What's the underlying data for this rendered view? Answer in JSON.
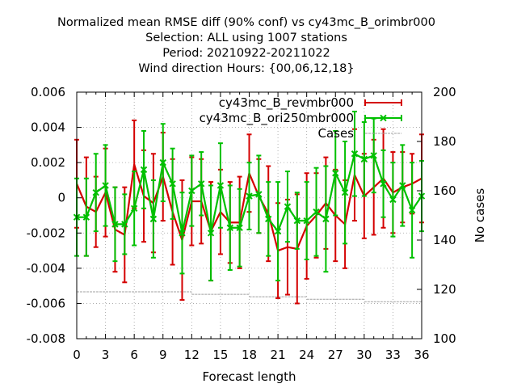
{
  "chart_data": {
    "type": "line",
    "title_lines": [
      "Normalized mean RMSE diff (90% conf) vs cy43mc_B_orimbr000",
      "Selection: ALL using  1007 stations",
      "Period: 20210922-20211022",
      "Wind direction   Hours: {00,06,12,18}"
    ],
    "xlabel": "Forecast length",
    "ylabel": "",
    "y2label": "No cases",
    "xlim": [
      0,
      36
    ],
    "ylim": [
      -0.008,
      0.006
    ],
    "y2lim": [
      100,
      200
    ],
    "xticks": [
      "0",
      "3",
      "6",
      "9",
      "12",
      "15",
      "18",
      "21",
      "24",
      "27",
      "30",
      "33",
      "36"
    ],
    "yticks": [
      "-0.008",
      "-0.006",
      "-0.004",
      "-0.002",
      "0",
      "0.002",
      "0.004",
      "0.006"
    ],
    "y2ticks": [
      "100",
      "120",
      "140",
      "160",
      "180",
      "200"
    ],
    "grid": true,
    "legend_position": "top-right",
    "x": [
      0,
      1,
      2,
      3,
      4,
      5,
      6,
      7,
      8,
      9,
      10,
      11,
      12,
      13,
      14,
      15,
      16,
      17,
      18,
      19,
      20,
      21,
      22,
      23,
      24,
      25,
      26,
      27,
      28,
      29,
      30,
      31,
      32,
      33,
      34,
      35,
      36
    ],
    "series": [
      {
        "name": "cy43mc_B_revmbr000",
        "color": "#d40000",
        "values": [
          0.0008,
          -0.0005,
          -0.0008,
          0.0003,
          -0.0018,
          -0.0021,
          0.0019,
          0.0001,
          -0.0003,
          0.0012,
          -0.0008,
          -0.0024,
          -0.0002,
          -0.0002,
          -0.0019,
          -0.0008,
          -0.0014,
          -0.0014,
          0.0014,
          0.0001,
          -0.0009,
          -0.003,
          -0.0028,
          -0.0029,
          -0.0016,
          -0.001,
          -0.0003,
          -0.001,
          -0.0015,
          0.0013,
          0.0001,
          0.0006,
          0.0011,
          0.0003,
          0.0006,
          0.0008,
          0.0011
        ],
        "errors": [
          0.0025,
          0.0028,
          0.002,
          0.0025,
          0.0024,
          0.0027,
          0.0025,
          0.0026,
          0.0028,
          0.0025,
          0.003,
          0.0034,
          0.0025,
          0.0024,
          0.0028,
          0.0024,
          0.0023,
          0.0026,
          0.0022,
          0.0021,
          0.0027,
          0.0027,
          0.0027,
          0.0031,
          0.003,
          0.0024,
          0.0026,
          0.0026,
          0.0025,
          0.0026,
          0.0024,
          0.0027,
          0.0028,
          0.0023,
          0.002,
          0.0017,
          0.0025
        ]
      },
      {
        "name": "cy43mc_B_ori250mbr000",
        "color": "#00c000",
        "values": [
          -0.0011,
          -0.0011,
          0.0003,
          0.0007,
          -0.0015,
          -0.0015,
          -0.0006,
          0.0016,
          -0.0012,
          0.002,
          0.0008,
          -0.002,
          0.0004,
          0.0008,
          -0.002,
          0.0007,
          -0.0017,
          -0.0017,
          0.0001,
          0.0002,
          -0.0012,
          -0.0019,
          -0.0005,
          -0.0013,
          -0.0013,
          -0.0008,
          -0.0012,
          0.0014,
          0.0003,
          0.0025,
          0.0022,
          0.0024,
          0.0008,
          -0.0001,
          0.0007,
          -0.0007,
          0.0001
        ],
        "errors": [
          0.0022,
          0.0022,
          0.0022,
          0.0023,
          0.0021,
          0.0017,
          0.0021,
          0.0022,
          0.0022,
          0.0022,
          0.002,
          0.0023,
          0.002,
          0.0018,
          0.0027,
          0.0024,
          0.0024,
          0.0022,
          0.0019,
          0.0022,
          0.0021,
          0.0028,
          0.002,
          0.0016,
          0.0022,
          0.0025,
          0.003,
          0.0024,
          0.0029,
          0.0024,
          0.0021,
          0.0021,
          0.0019,
          0.0021,
          0.0023,
          0.0027,
          0.002
        ]
      }
    ],
    "cases": {
      "name": "Cases",
      "color": "#a0a0a0",
      "segments": [
        {
          "x_start": 0,
          "x_end": 12,
          "value": 119
        },
        {
          "x_start": 12,
          "x_end": 18,
          "value": 118
        },
        {
          "x_start": 18,
          "x_end": 24,
          "value": 117
        },
        {
          "x_start": 24,
          "x_end": 30,
          "value": 116
        },
        {
          "x_start": 30,
          "x_end": 36,
          "value": 115
        }
      ]
    }
  }
}
